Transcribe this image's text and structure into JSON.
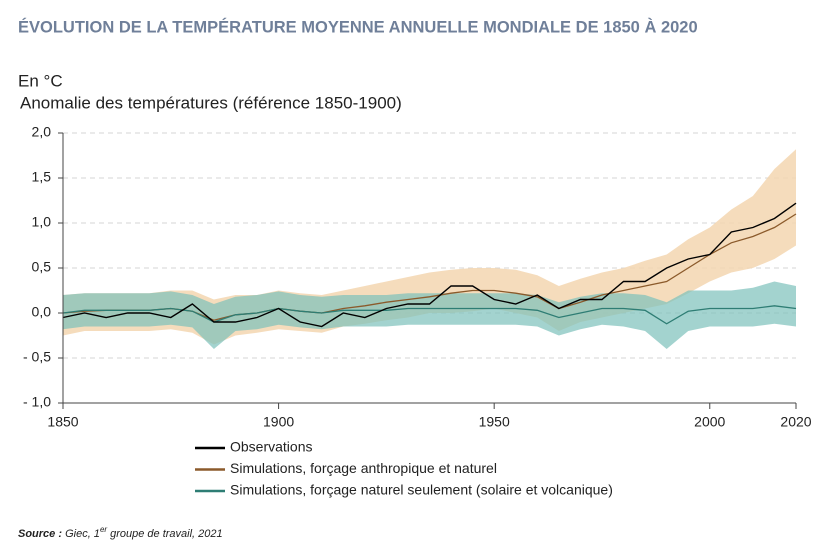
{
  "chart_data": {
    "type": "line",
    "title": "ÉVOLUTION DE LA TEMPÉRATURE MOYENNE ANNUELLE MONDIALE DE 1850 À 2020",
    "y_unit": "En °C",
    "y_label": "Anomalie des températures (référence 1850-1900)",
    "x": [
      1850,
      1855,
      1860,
      1865,
      1870,
      1875,
      1880,
      1885,
      1890,
      1895,
      1900,
      1905,
      1910,
      1915,
      1920,
      1925,
      1930,
      1935,
      1940,
      1945,
      1950,
      1955,
      1960,
      1965,
      1970,
      1975,
      1980,
      1985,
      1990,
      1995,
      2000,
      2005,
      2010,
      2015,
      2020
    ],
    "xlim": [
      1850,
      2020
    ],
    "xticks": [
      1850,
      1900,
      1950,
      2000,
      2020
    ],
    "ylim": [
      -1.0,
      2.0
    ],
    "yticks": [
      {
        "value": -1.0,
        "label": "- 1,0"
      },
      {
        "value": -0.5,
        "label": "- 0,5"
      },
      {
        "value": 0,
        "label": "0,0"
      },
      {
        "value": 0.5,
        "label": "0,5"
      },
      {
        "value": 1.0,
        "label": "1,0"
      },
      {
        "value": 1.5,
        "label": "1,5"
      },
      {
        "value": 2.0,
        "label": "2,0"
      }
    ],
    "grid": true,
    "legend": "bottom",
    "series": [
      {
        "name": "Observations",
        "color": "#000000",
        "values": [
          -0.05,
          0.0,
          -0.05,
          0.0,
          0.0,
          -0.05,
          0.1,
          -0.1,
          -0.1,
          -0.05,
          0.05,
          -0.1,
          -0.15,
          0.0,
          -0.05,
          0.05,
          0.1,
          0.1,
          0.3,
          0.3,
          0.15,
          0.1,
          0.2,
          0.05,
          0.15,
          0.15,
          0.35,
          0.35,
          0.5,
          0.6,
          0.65,
          0.9,
          0.95,
          1.05,
          1.22
        ]
      },
      {
        "name": "Simulations, forçage anthropique et naturel",
        "color": "#8b5a2b",
        "band_color": "#f3d6b0",
        "values": [
          0.0,
          0.02,
          0.03,
          0.03,
          0.03,
          0.05,
          0.02,
          -0.08,
          -0.02,
          0.0,
          0.05,
          0.02,
          0.0,
          0.05,
          0.08,
          0.12,
          0.15,
          0.18,
          0.22,
          0.25,
          0.25,
          0.22,
          0.18,
          0.05,
          0.12,
          0.2,
          0.25,
          0.3,
          0.35,
          0.5,
          0.65,
          0.78,
          0.85,
          0.95,
          1.1
        ],
        "low": [
          -0.25,
          -0.2,
          -0.2,
          -0.2,
          -0.2,
          -0.18,
          -0.22,
          -0.35,
          -0.25,
          -0.22,
          -0.18,
          -0.2,
          -0.22,
          -0.15,
          -0.12,
          -0.08,
          -0.05,
          0.0,
          0.0,
          0.02,
          0.05,
          0.0,
          -0.05,
          -0.2,
          -0.1,
          -0.05,
          0.0,
          0.05,
          0.1,
          0.22,
          0.35,
          0.45,
          0.5,
          0.6,
          0.75
        ],
        "high": [
          0.2,
          0.22,
          0.22,
          0.22,
          0.22,
          0.25,
          0.25,
          0.15,
          0.2,
          0.2,
          0.25,
          0.22,
          0.2,
          0.25,
          0.3,
          0.35,
          0.4,
          0.45,
          0.48,
          0.5,
          0.5,
          0.48,
          0.42,
          0.3,
          0.38,
          0.45,
          0.5,
          0.58,
          0.65,
          0.82,
          0.95,
          1.15,
          1.3,
          1.6,
          1.82
        ]
      },
      {
        "name": "Simulations, forçage naturel seulement (solaire et volcanique)",
        "color": "#2e7d74",
        "band_color": "#7cc0bb",
        "values": [
          0.0,
          0.03,
          0.03,
          0.03,
          0.03,
          0.05,
          0.02,
          -0.1,
          -0.02,
          0.0,
          0.05,
          0.02,
          0.0,
          0.03,
          0.03,
          0.03,
          0.05,
          0.05,
          0.05,
          0.05,
          0.05,
          0.05,
          0.03,
          -0.05,
          0.0,
          0.05,
          0.05,
          0.03,
          -0.12,
          0.02,
          0.05,
          0.05,
          0.05,
          0.08,
          0.05
        ],
        "low": [
          -0.18,
          -0.15,
          -0.15,
          -0.15,
          -0.15,
          -0.13,
          -0.16,
          -0.4,
          -0.2,
          -0.18,
          -0.13,
          -0.16,
          -0.18,
          -0.15,
          -0.15,
          -0.15,
          -0.13,
          -0.13,
          -0.13,
          -0.13,
          -0.13,
          -0.13,
          -0.15,
          -0.25,
          -0.18,
          -0.13,
          -0.15,
          -0.2,
          -0.4,
          -0.2,
          -0.15,
          -0.15,
          -0.15,
          -0.12,
          -0.15
        ],
        "high": [
          0.2,
          0.22,
          0.22,
          0.22,
          0.22,
          0.24,
          0.2,
          0.1,
          0.18,
          0.2,
          0.24,
          0.2,
          0.18,
          0.2,
          0.2,
          0.2,
          0.22,
          0.22,
          0.22,
          0.22,
          0.22,
          0.22,
          0.2,
          0.12,
          0.18,
          0.22,
          0.22,
          0.2,
          0.12,
          0.25,
          0.25,
          0.25,
          0.28,
          0.35,
          0.3
        ]
      }
    ],
    "source": {
      "label": "Source :",
      "pre": "Giec, 1",
      "sup": "er",
      "post": " groupe de travail, 2021"
    }
  }
}
